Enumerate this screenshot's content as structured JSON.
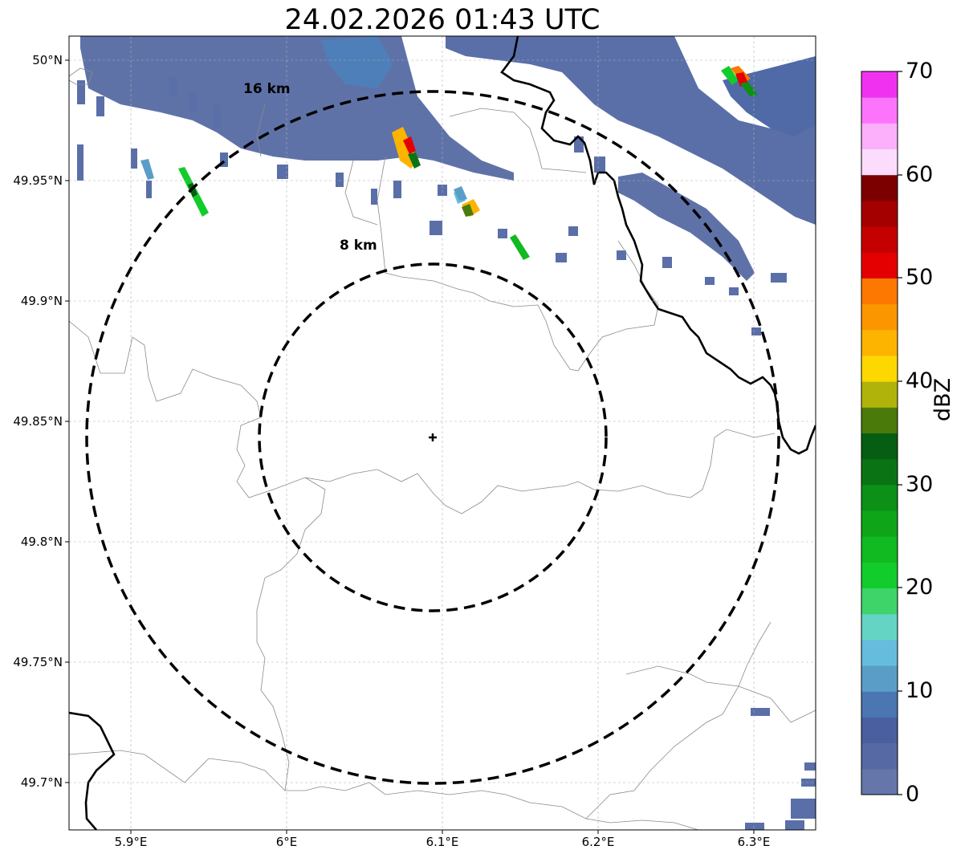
{
  "title": "24.02.2026 01:43 UTC",
  "axes": {
    "lat_ticks": [
      "50°N",
      "49.95°N",
      "49.9°N",
      "49.85°N",
      "49.8°N",
      "49.75°N",
      "49.7°N"
    ],
    "lon_ticks": [
      "5.9°E",
      "6°E",
      "6.1°E",
      "6.2°E",
      "6.3°E"
    ]
  },
  "rings": [
    {
      "label": "8 km",
      "radius_km": 8
    },
    {
      "label": "16 km",
      "radius_km": 16
    }
  ],
  "radar_site": {
    "lat": 49.843,
    "lon": 6.094
  },
  "colorbar": {
    "label": "dBZ",
    "ticks": [
      "0",
      "10",
      "20",
      "30",
      "40",
      "50",
      "60",
      "70"
    ],
    "min": 0,
    "max": 70,
    "step": 2.5,
    "colors": [
      "#6476aa",
      "#5669a4",
      "#4a5fa0",
      "#4a76b2",
      "#5a9ec8",
      "#66bcdc",
      "#64d4c4",
      "#3ed46a",
      "#12cc2c",
      "#10ba20",
      "#0ea618",
      "#0c9016",
      "#0a7414",
      "#065e12",
      "#4a7a0a",
      "#b0b40a",
      "#fcd800",
      "#fcb400",
      "#fc9600",
      "#fc7800",
      "#e40000",
      "#c40000",
      "#a40000",
      "#7c0000",
      "#fcdcfc",
      "#fcb0fc",
      "#fc74fc",
      "#f032f0"
    ]
  },
  "colors": {
    "reflectivity_low": "#5a6fa8",
    "reflectivity_mid": "#4f7fb8",
    "border": "#000000",
    "admin": "#8a8a8a"
  }
}
